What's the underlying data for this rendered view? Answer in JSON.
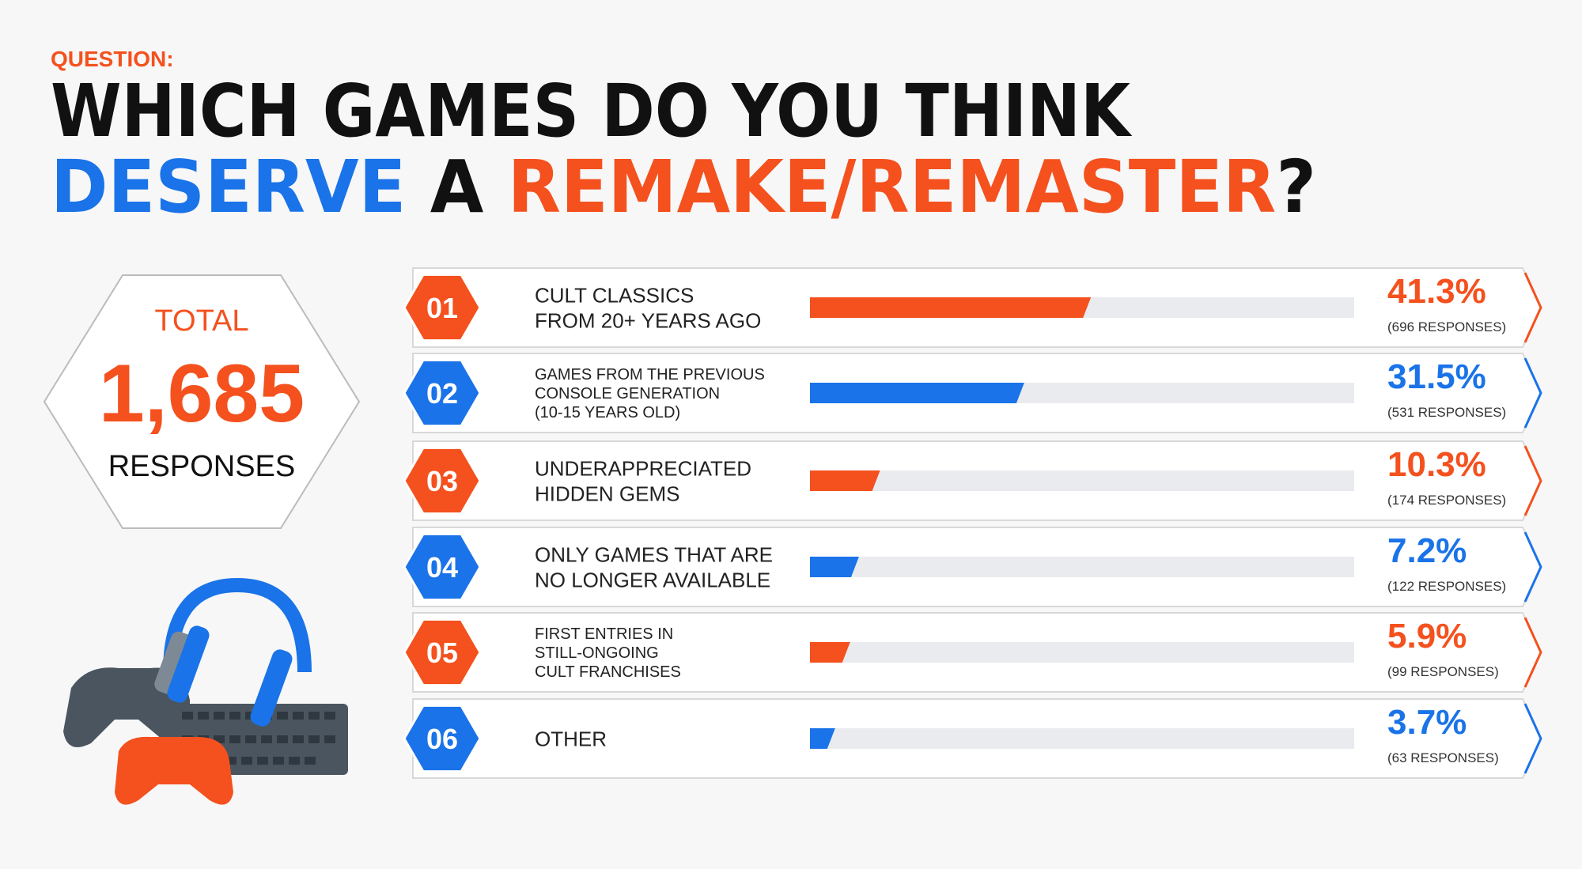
{
  "question_label": "QUESTION:",
  "chart_data": {
    "type": "bar",
    "title_line1": "WHICH GAMES DO YOU THINK",
    "title_line2": [
      {
        "text": "DESERVE",
        "color": "#1a73e8"
      },
      {
        "text": "A",
        "color": "#111111"
      },
      {
        "text": "REMAKE/REMASTER",
        "color": "#f4511e"
      },
      {
        "text": "?",
        "color": "#111111"
      }
    ],
    "total_heading": "TOTAL",
    "total": "1,685",
    "total_caption": "RESPONSES",
    "ranks": [
      "01",
      "02",
      "03",
      "04",
      "05",
      "06"
    ],
    "categories": [
      [
        "CULT CLASSICS",
        "FROM 20+ YEARS AGO"
      ],
      [
        "GAMES FROM THE PREVIOUS",
        "CONSOLE GENERATION",
        "(10-15 YEARS OLD)"
      ],
      [
        "UNDERAPPRECIATED",
        "HIDDEN GEMS"
      ],
      [
        "ONLY GAMES THAT ARE",
        "NO LONGER AVAILABLE"
      ],
      [
        "FIRST ENTRIES IN",
        "STILL-ONGOING",
        "CULT FRANCHISES"
      ],
      [
        "OTHER"
      ]
    ],
    "values": [
      41.3,
      31.5,
      10.3,
      7.2,
      5.9,
      3.7
    ],
    "value_labels": [
      "41.3%",
      "31.5%",
      "10.3%",
      "7.2%",
      "5.9%",
      "3.7%"
    ],
    "response_labels": [
      "(696 RESPONSES)",
      "(531 RESPONSES)",
      "(174 RESPONSES)",
      "(122 RESPONSES)",
      "(99 RESPONSES)",
      "(63 RESPONSES)"
    ],
    "colors": [
      "#f4511e",
      "#1a73e8",
      "#f4511e",
      "#1a73e8",
      "#f4511e",
      "#1a73e8"
    ],
    "xlim": [
      0,
      80
    ]
  }
}
